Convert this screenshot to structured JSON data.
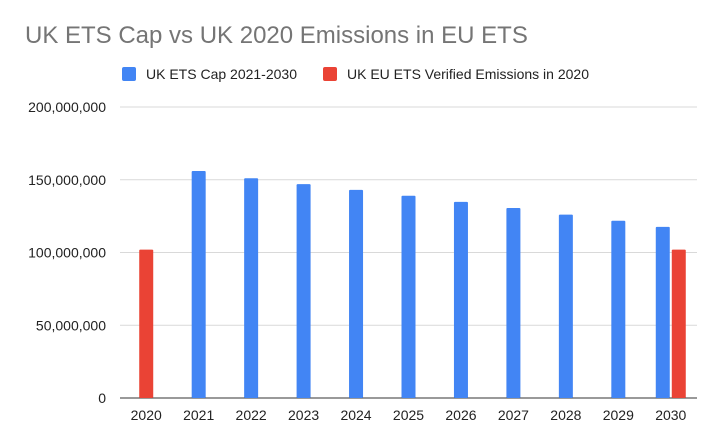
{
  "chart_data": {
    "type": "bar",
    "title": "UK ETS Cap vs UK 2020 Emissions in EU ETS",
    "categories": [
      "2020",
      "2021",
      "2022",
      "2023",
      "2024",
      "2025",
      "2026",
      "2027",
      "2028",
      "2029",
      "2030"
    ],
    "series": [
      {
        "name": "UK ETS Cap 2021-2030",
        "color": "#4285f4",
        "values": [
          null,
          156000000,
          151000000,
          147000000,
          143000000,
          139000000,
          134800000,
          130600000,
          126000000,
          121800000,
          117600000
        ]
      },
      {
        "name": "UK EU ETS Verified Emissions in 2020",
        "color": "#ea4335",
        "values": [
          102000000,
          null,
          null,
          null,
          null,
          null,
          null,
          null,
          null,
          null,
          102000000
        ]
      }
    ],
    "ylim": [
      0,
      200000000
    ],
    "yticks": [
      0,
      50000000,
      100000000,
      150000000,
      200000000
    ],
    "ytick_labels": [
      "0",
      "50,000,000",
      "100,000,000",
      "150,000,000",
      "200,000,000"
    ],
    "xlabel": "",
    "ylabel": "",
    "grid": true,
    "legend_position": "top"
  }
}
